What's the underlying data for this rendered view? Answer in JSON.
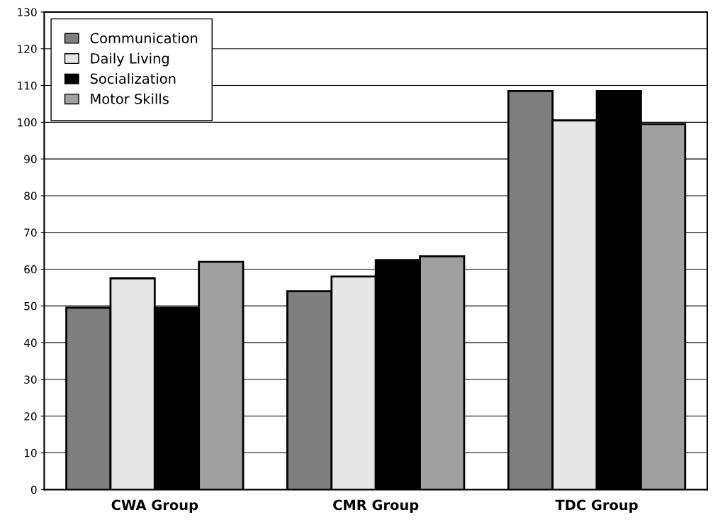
{
  "chart_data": {
    "type": "bar",
    "categories": [
      "CWA Group",
      "CMR Group",
      "TDC Group"
    ],
    "series": [
      {
        "name": "Communication",
        "color": "#7f7f7f",
        "values": [
          49.5,
          54,
          108.5
        ]
      },
      {
        "name": "Daily Living",
        "color": "#e6e6e6",
        "values": [
          57.5,
          58,
          100.5
        ]
      },
      {
        "name": "Socialization",
        "color": "#000000",
        "values": [
          49.5,
          62.5,
          108.5
        ]
      },
      {
        "name": "Motor Skills",
        "color": "#a0a0a0",
        "values": [
          62,
          63.5,
          99.5
        ]
      }
    ],
    "ylim": [
      0,
      130
    ],
    "yticks": [
      0,
      10,
      20,
      30,
      40,
      50,
      60,
      70,
      80,
      90,
      100,
      110,
      120,
      130
    ],
    "grid": "y",
    "legend": "top left"
  }
}
